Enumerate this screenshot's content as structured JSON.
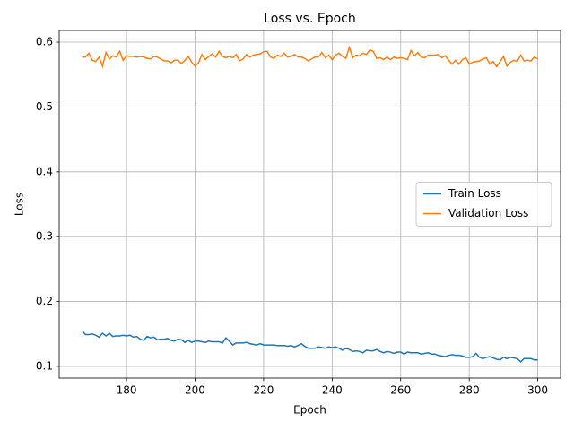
{
  "chart_data": {
    "type": "line",
    "title": "Loss vs. Epoch",
    "x_label": "Epoch",
    "y_label": "Loss",
    "x": [
      167,
      168,
      169,
      170,
      171,
      172,
      173,
      174,
      175,
      176,
      177,
      178,
      179,
      180,
      181,
      182,
      183,
      184,
      185,
      186,
      187,
      188,
      189,
      190,
      191,
      192,
      193,
      194,
      195,
      196,
      197,
      198,
      199,
      200,
      201,
      202,
      203,
      204,
      205,
      206,
      207,
      208,
      209,
      210,
      211,
      212,
      213,
      214,
      215,
      216,
      217,
      218,
      219,
      220,
      221,
      222,
      223,
      224,
      225,
      226,
      227,
      228,
      229,
      230,
      231,
      232,
      233,
      234,
      235,
      236,
      237,
      238,
      239,
      240,
      241,
      242,
      243,
      244,
      245,
      246,
      247,
      248,
      249,
      250,
      251,
      252,
      253,
      254,
      255,
      256,
      257,
      258,
      259,
      260,
      261,
      262,
      263,
      264,
      265,
      266,
      267,
      268,
      269,
      270,
      271,
      272,
      273,
      274,
      275,
      276,
      277,
      278,
      279,
      280,
      281,
      282,
      283,
      284,
      285,
      286,
      287,
      288,
      289,
      290,
      291,
      292,
      293,
      294,
      295,
      296,
      297,
      298,
      299,
      300
    ],
    "series": [
      {
        "name": "Train Loss",
        "color": "#1f77b4",
        "values": [
          0.155,
          0.149,
          0.149,
          0.15,
          0.148,
          0.145,
          0.151,
          0.147,
          0.151,
          0.146,
          0.147,
          0.147,
          0.148,
          0.147,
          0.148,
          0.145,
          0.146,
          0.142,
          0.14,
          0.146,
          0.144,
          0.145,
          0.141,
          0.142,
          0.142,
          0.143,
          0.14,
          0.139,
          0.142,
          0.141,
          0.137,
          0.14,
          0.137,
          0.139,
          0.139,
          0.138,
          0.137,
          0.139,
          0.138,
          0.138,
          0.138,
          0.136,
          0.144,
          0.139,
          0.133,
          0.136,
          0.136,
          0.136,
          0.137,
          0.135,
          0.134,
          0.133,
          0.135,
          0.133,
          0.133,
          0.133,
          0.133,
          0.132,
          0.132,
          0.132,
          0.131,
          0.132,
          0.13,
          0.132,
          0.135,
          0.131,
          0.128,
          0.128,
          0.128,
          0.13,
          0.129,
          0.128,
          0.13,
          0.129,
          0.13,
          0.128,
          0.125,
          0.128,
          0.126,
          0.123,
          0.124,
          0.123,
          0.121,
          0.125,
          0.124,
          0.124,
          0.126,
          0.123,
          0.121,
          0.123,
          0.122,
          0.12,
          0.122,
          0.122,
          0.119,
          0.122,
          0.121,
          0.121,
          0.121,
          0.119,
          0.12,
          0.121,
          0.119,
          0.119,
          0.117,
          0.116,
          0.115,
          0.117,
          0.118,
          0.117,
          0.117,
          0.116,
          0.114,
          0.114,
          0.115,
          0.12,
          0.114,
          0.112,
          0.114,
          0.115,
          0.113,
          0.111,
          0.11,
          0.114,
          0.112,
          0.114,
          0.113,
          0.112,
          0.107,
          0.112,
          0.112,
          0.112,
          0.11,
          0.11
        ]
      },
      {
        "name": "Validation Loss",
        "color": "#ff7f0e",
        "values": [
          0.577,
          0.577,
          0.583,
          0.572,
          0.57,
          0.577,
          0.563,
          0.584,
          0.574,
          0.579,
          0.577,
          0.586,
          0.572,
          0.579,
          0.578,
          0.578,
          0.577,
          0.578,
          0.577,
          0.575,
          0.574,
          0.578,
          0.577,
          0.574,
          0.571,
          0.571,
          0.568,
          0.572,
          0.572,
          0.567,
          0.572,
          0.578,
          0.569,
          0.563,
          0.568,
          0.581,
          0.573,
          0.578,
          0.582,
          0.577,
          0.586,
          0.578,
          0.576,
          0.578,
          0.576,
          0.581,
          0.571,
          0.574,
          0.581,
          0.577,
          0.58,
          0.581,
          0.582,
          0.585,
          0.586,
          0.577,
          0.575,
          0.58,
          0.578,
          0.583,
          0.577,
          0.578,
          0.581,
          0.577,
          0.577,
          0.575,
          0.571,
          0.574,
          0.577,
          0.577,
          0.584,
          0.576,
          0.58,
          0.573,
          0.58,
          0.583,
          0.578,
          0.575,
          0.592,
          0.576,
          0.58,
          0.579,
          0.583,
          0.581,
          0.588,
          0.586,
          0.575,
          0.576,
          0.573,
          0.577,
          0.573,
          0.577,
          0.575,
          0.576,
          0.575,
          0.573,
          0.587,
          0.579,
          0.584,
          0.577,
          0.576,
          0.58,
          0.58,
          0.58,
          0.581,
          0.576,
          0.579,
          0.572,
          0.566,
          0.572,
          0.566,
          0.573,
          0.576,
          0.566,
          0.569,
          0.57,
          0.571,
          0.574,
          0.576,
          0.566,
          0.57,
          0.562,
          0.57,
          0.578,
          0.563,
          0.569,
          0.572,
          0.57,
          0.58,
          0.571,
          0.572,
          0.571,
          0.577,
          0.574
        ]
      }
    ],
    "xlim": [
      160.35,
      306.65
    ],
    "xticks": [
      180,
      200,
      220,
      240,
      260,
      280,
      300
    ],
    "ylim": [
      0.082,
      0.618
    ],
    "yticks": [
      0.1,
      0.2,
      0.3,
      0.4,
      0.5,
      0.6
    ],
    "grid": true,
    "legend": "center right"
  }
}
